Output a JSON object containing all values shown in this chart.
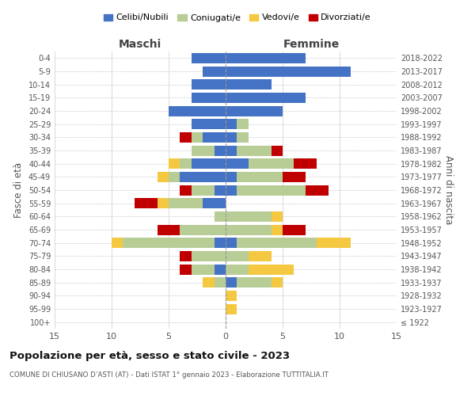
{
  "age_groups": [
    "100+",
    "95-99",
    "90-94",
    "85-89",
    "80-84",
    "75-79",
    "70-74",
    "65-69",
    "60-64",
    "55-59",
    "50-54",
    "45-49",
    "40-44",
    "35-39",
    "30-34",
    "25-29",
    "20-24",
    "15-19",
    "10-14",
    "5-9",
    "0-4"
  ],
  "birth_years": [
    "≤ 1922",
    "1923-1927",
    "1928-1932",
    "1933-1937",
    "1938-1942",
    "1943-1947",
    "1948-1952",
    "1953-1957",
    "1958-1962",
    "1963-1967",
    "1968-1972",
    "1973-1977",
    "1978-1982",
    "1983-1987",
    "1988-1992",
    "1993-1997",
    "1998-2002",
    "2003-2007",
    "2008-2012",
    "2013-2017",
    "2018-2022"
  ],
  "colors": {
    "celibi": "#4472C4",
    "coniugati": "#B8CC96",
    "vedovi": "#F5C842",
    "divorziati": "#C00000",
    "background": "#FFFFFF",
    "grid": "#CCCCCC"
  },
  "maschi": {
    "celibi": [
      0,
      0,
      0,
      0,
      1,
      0,
      1,
      0,
      0,
      2,
      1,
      4,
      3,
      1,
      2,
      3,
      5,
      3,
      3,
      2,
      3
    ],
    "coniugati": [
      0,
      0,
      0,
      1,
      2,
      3,
      8,
      4,
      1,
      3,
      2,
      1,
      1,
      2,
      1,
      0,
      0,
      0,
      0,
      0,
      0
    ],
    "vedovi": [
      0,
      0,
      0,
      1,
      0,
      0,
      1,
      0,
      0,
      1,
      0,
      1,
      1,
      0,
      0,
      0,
      0,
      0,
      0,
      0,
      0
    ],
    "divorziati": [
      0,
      0,
      0,
      0,
      1,
      1,
      0,
      2,
      0,
      2,
      1,
      0,
      0,
      0,
      1,
      0,
      0,
      0,
      0,
      0,
      0
    ]
  },
  "femmine": {
    "celibi": [
      0,
      0,
      0,
      1,
      0,
      0,
      1,
      0,
      0,
      0,
      1,
      1,
      2,
      1,
      1,
      1,
      5,
      7,
      4,
      11,
      7
    ],
    "coniugati": [
      0,
      0,
      0,
      3,
      2,
      2,
      7,
      4,
      4,
      0,
      6,
      4,
      4,
      3,
      1,
      1,
      0,
      0,
      0,
      0,
      0
    ],
    "vedovi": [
      0,
      1,
      1,
      1,
      4,
      2,
      3,
      1,
      1,
      0,
      0,
      0,
      0,
      0,
      0,
      0,
      0,
      0,
      0,
      0,
      0
    ],
    "divorziati": [
      0,
      0,
      0,
      0,
      0,
      0,
      0,
      2,
      0,
      0,
      2,
      2,
      2,
      1,
      0,
      0,
      0,
      0,
      0,
      0,
      0
    ]
  },
  "xlim": 15,
  "title": "Popolazione per età, sesso e stato civile - 2023",
  "subtitle": "COMUNE DI CHIUSANO D’ASTI (AT) - Dati ISTAT 1° gennaio 2023 - Elaborazione TUTTITALIA.IT",
  "ylabel": "Fasce di età",
  "ylabel2": "Anni di nascita",
  "maschi_label": "Maschi",
  "femmine_label": "Femmine",
  "legend_labels": [
    "Celibi/Nubili",
    "Coniugati/e",
    "Vedovi/e",
    "Divorziati/e"
  ]
}
